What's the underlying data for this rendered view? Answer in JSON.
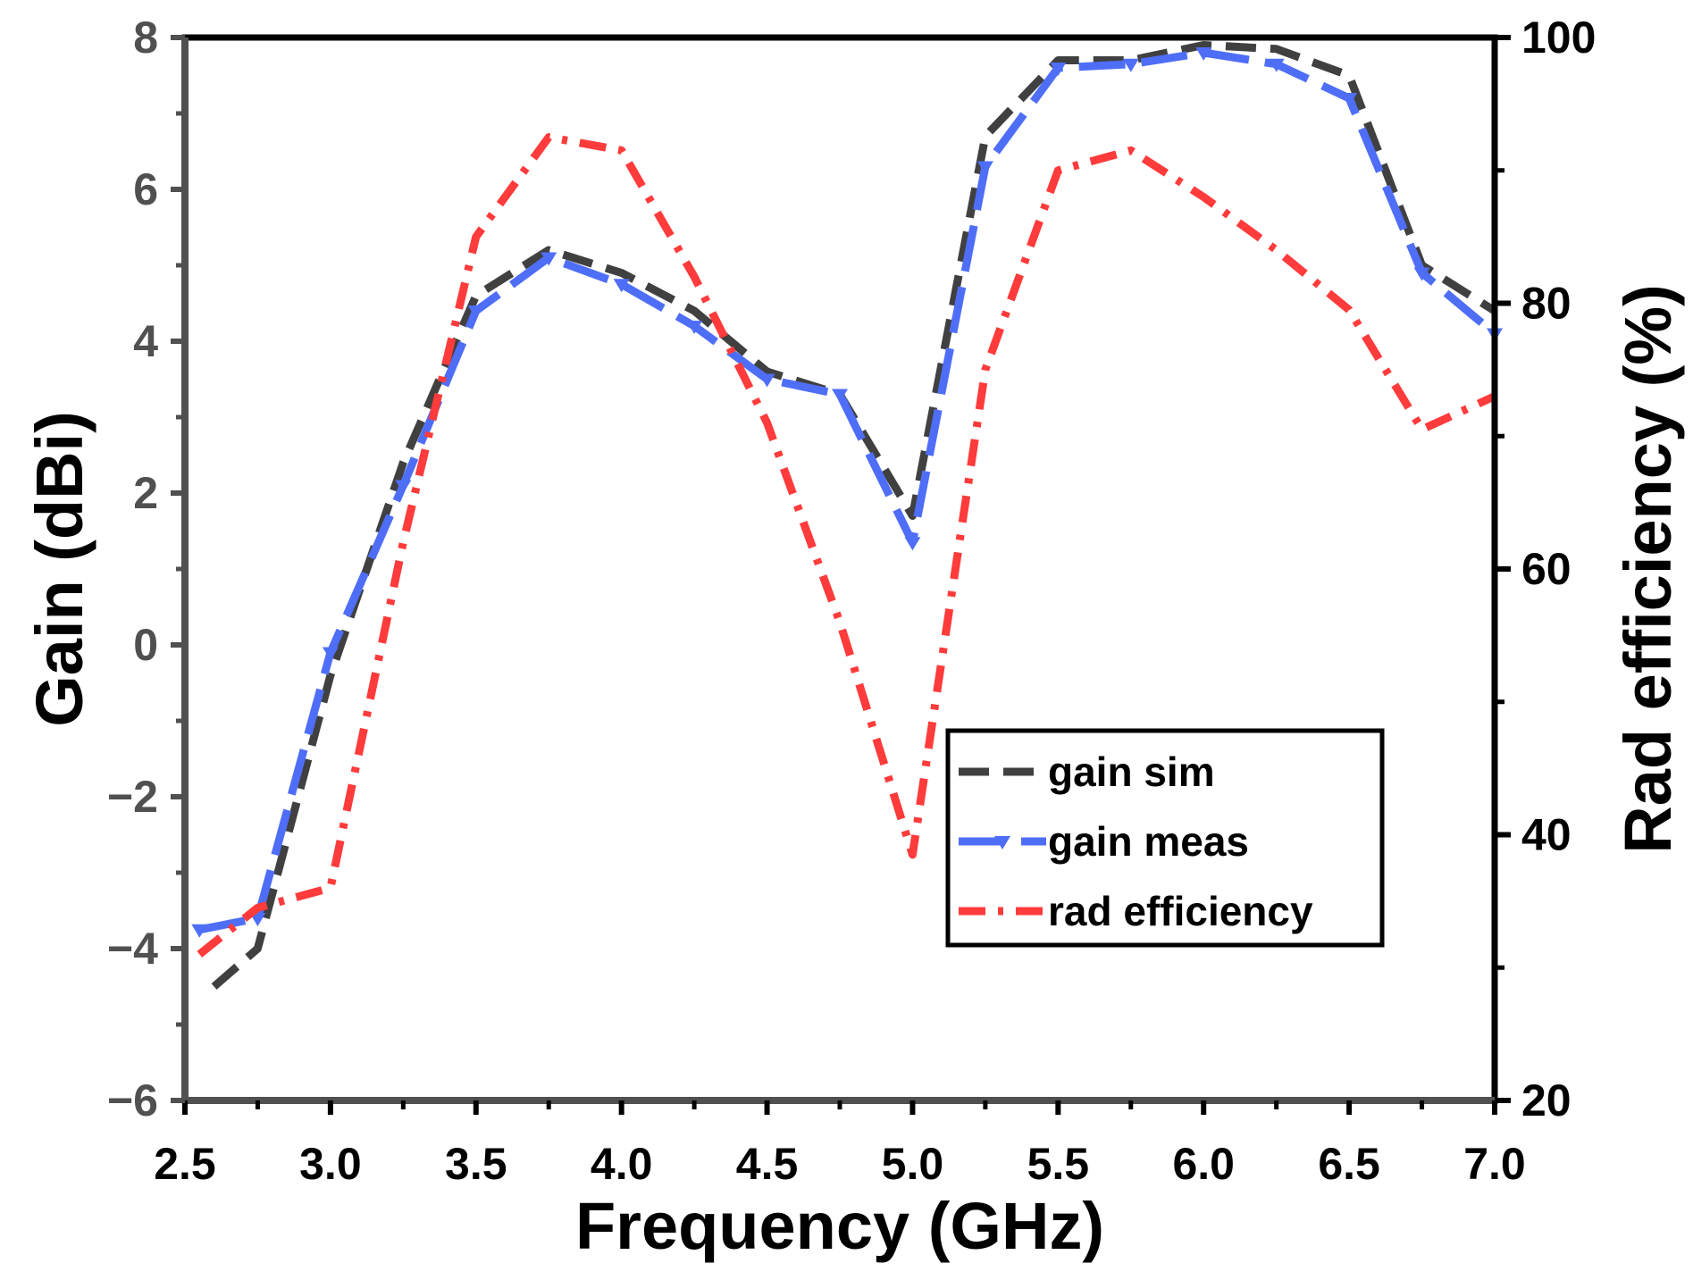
{
  "chart_data": {
    "type": "line",
    "title": "",
    "xlabel": "Frequency (GHz)",
    "ylabel_left": "Gain (dBi)",
    "ylabel_right": "Rad efficiency (%)",
    "xlim": [
      2.5,
      7.0
    ],
    "ylim_left": [
      -6,
      8
    ],
    "ylim_right": [
      20,
      100
    ],
    "x_ticks": [
      "2.5",
      "3.0",
      "3.5",
      "4.0",
      "4.5",
      "5.0",
      "5.5",
      "6.0",
      "6.5",
      "7.0"
    ],
    "y_left_ticks": [
      "−6",
      "−4",
      "−2",
      "0",
      "2",
      "4",
      "6",
      "8"
    ],
    "y_right_ticks": [
      "20",
      "40",
      "60",
      "80",
      "100"
    ],
    "grid": false,
    "legend_position": "center-right",
    "series": [
      {
        "name": "gain sim",
        "axis": "left",
        "color": "#404040",
        "style": "dash",
        "x": [
          2.6,
          2.75,
          3.0,
          3.25,
          3.5,
          3.75,
          4.0,
          4.25,
          4.5,
          4.75,
          5.0,
          5.25,
          5.5,
          5.75,
          6.0,
          6.25,
          6.5,
          6.75,
          7.0
        ],
        "y": [
          -4.5,
          -4.0,
          -0.4,
          2.4,
          4.6,
          5.2,
          4.9,
          4.4,
          3.6,
          3.3,
          1.7,
          6.7,
          7.7,
          7.7,
          7.9,
          7.85,
          7.5,
          5.0,
          4.4
        ]
      },
      {
        "name": "gain meas",
        "axis": "left",
        "color": "#4f6ef7",
        "style": "long-dash",
        "x": [
          2.55,
          2.75,
          3.0,
          3.25,
          3.5,
          3.75,
          4.0,
          4.25,
          4.5,
          4.75,
          5.0,
          5.25,
          5.5,
          5.75,
          6.0,
          6.25,
          6.5,
          6.75,
          7.0
        ],
        "y": [
          -3.75,
          -3.6,
          -0.1,
          2.1,
          4.4,
          5.1,
          4.75,
          4.2,
          3.5,
          3.3,
          1.35,
          6.3,
          7.6,
          7.65,
          7.8,
          7.65,
          7.2,
          4.9,
          4.1
        ]
      },
      {
        "name": "rad efficiency",
        "axis": "right",
        "color": "#ff3b3b",
        "style": "dash-dot",
        "x": [
          2.55,
          2.75,
          3.0,
          3.25,
          3.5,
          3.75,
          4.0,
          4.25,
          4.5,
          4.75,
          5.0,
          5.25,
          5.5,
          5.75,
          6.0,
          6.25,
          6.5,
          6.75,
          7.0
        ],
        "y": [
          31,
          34.5,
          36,
          62,
          85,
          92.5,
          91.5,
          82,
          71,
          56,
          38.5,
          75,
          90,
          91.5,
          88,
          84,
          79.5,
          70.5,
          73
        ]
      }
    ]
  }
}
